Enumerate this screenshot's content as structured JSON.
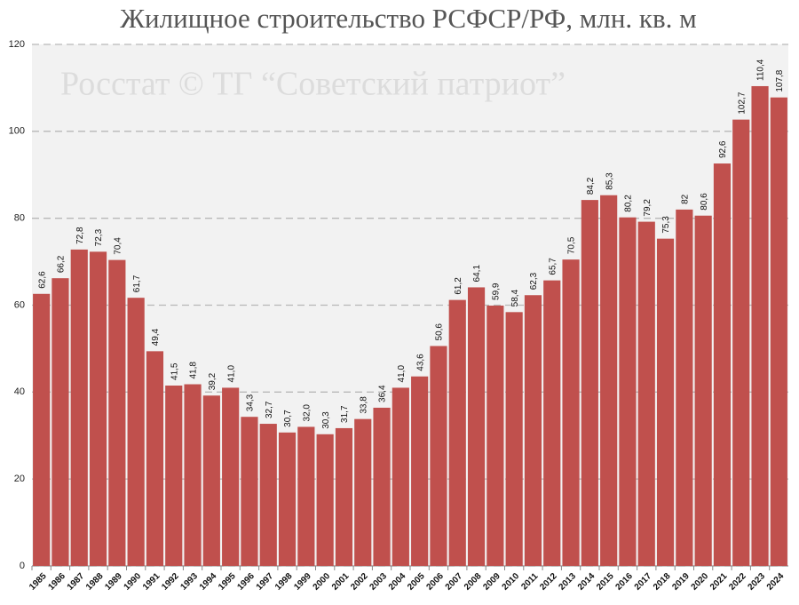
{
  "chart_data": {
    "type": "bar",
    "title": "Жилищное строительство РСФСР/РФ, млн. кв. м",
    "annotation": "Росстат © ТГ “Советский патриот”",
    "categories": [
      "1985",
      "1986",
      "1987",
      "1988",
      "1989",
      "1990",
      "1991",
      "1992",
      "1993",
      "1994",
      "1995",
      "1996",
      "1997",
      "1998",
      "1999",
      "2000",
      "2001",
      "2002",
      "2003",
      "2004",
      "2005",
      "2006",
      "2007",
      "2008",
      "2009",
      "2010",
      "2011",
      "2012",
      "2013",
      "2014",
      "2015",
      "2016",
      "2017",
      "2018",
      "2019",
      "2020",
      "2021",
      "2022",
      "2023",
      "2024"
    ],
    "values": [
      62.6,
      66.2,
      72.8,
      72.3,
      70.4,
      61.7,
      49.4,
      41.5,
      41.8,
      39.2,
      41.0,
      34.3,
      32.7,
      30.7,
      32.0,
      30.3,
      31.7,
      33.8,
      36.4,
      41.0,
      43.6,
      50.6,
      61.2,
      64.1,
      59.9,
      58.4,
      62.3,
      65.7,
      70.5,
      84.2,
      85.3,
      80.2,
      79.2,
      75.3,
      82,
      80.6,
      92.6,
      102.7,
      110.4,
      107.8
    ],
    "value_labels": [
      "62,6",
      "66,2",
      "72,8",
      "72,3",
      "70,4",
      "61,7",
      "49,4",
      "41,5",
      "41,8",
      "39,2",
      "41,0",
      "34,3",
      "32,7",
      "30,7",
      "32,0",
      "30,3",
      "31,7",
      "33,8",
      "36,4",
      "41,0",
      "43,6",
      "50,6",
      "61,2",
      "64,1",
      "59,9",
      "58,4",
      "62,3",
      "65,7",
      "70,5",
      "84,2",
      "85,3",
      "80,2",
      "79,2",
      "75,3",
      "82",
      "80,6",
      "92,6",
      "102,7",
      "110,4",
      "107,8"
    ],
    "color": "#c0504d",
    "ylim": [
      0,
      120
    ],
    "yticks": [
      0,
      20,
      40,
      60,
      80,
      100,
      120
    ],
    "grid": true
  }
}
